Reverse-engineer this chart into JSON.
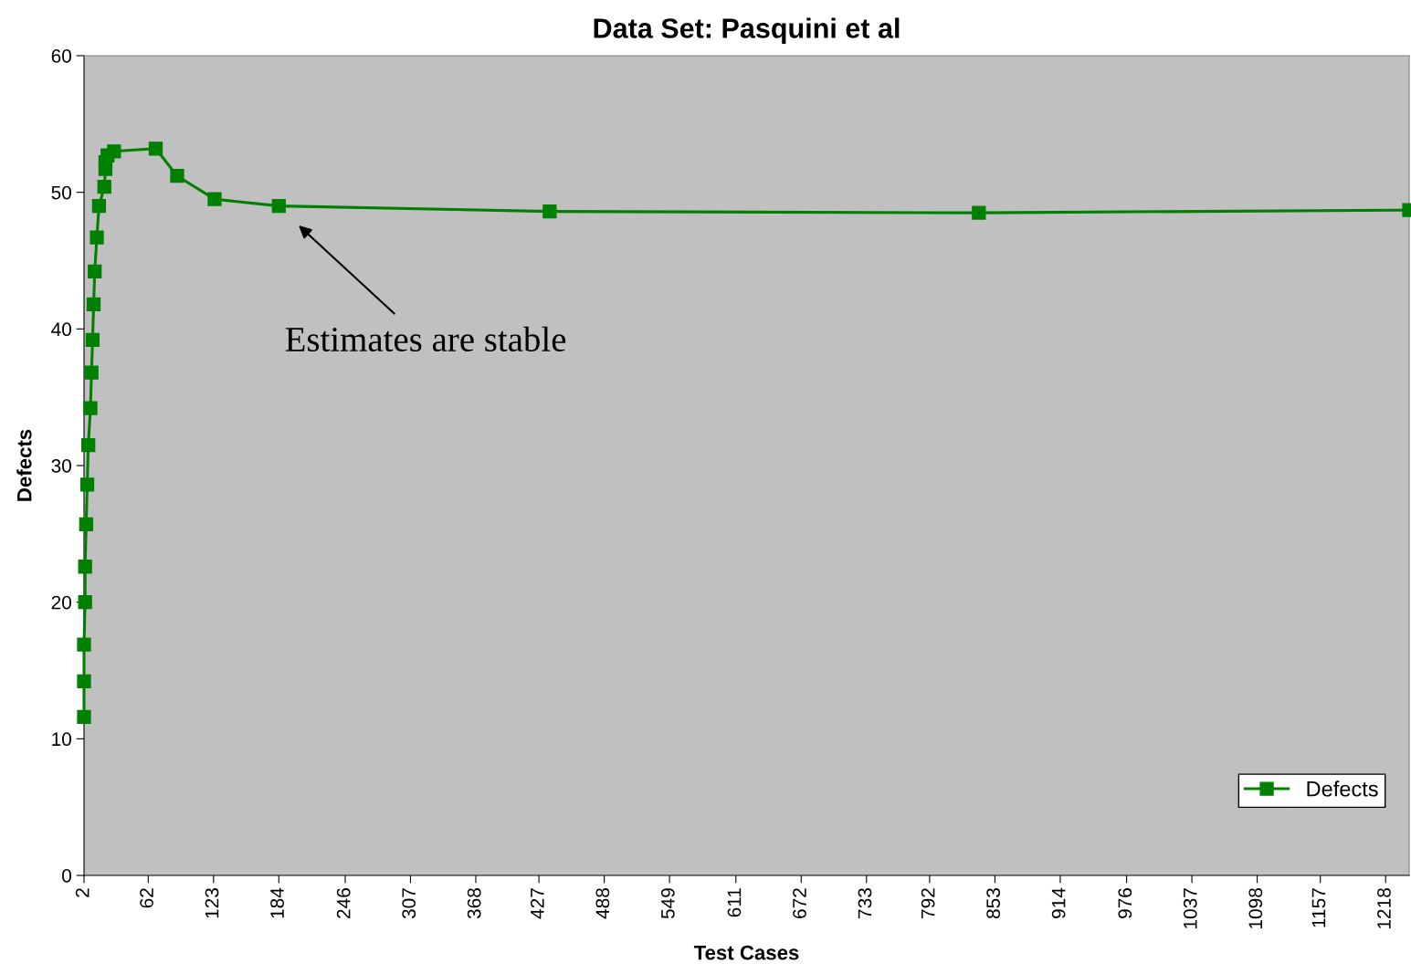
{
  "chart_data": {
    "type": "line",
    "title": "Data Set: Pasquini et al",
    "xlabel": "Test Cases",
    "ylabel": "Defects",
    "x": [
      2,
      2,
      2,
      3,
      3,
      4,
      5,
      6,
      8,
      9,
      10,
      11,
      12,
      14,
      16,
      21,
      22,
      22,
      24,
      30,
      69,
      89,
      124,
      184,
      437,
      838,
      1240
    ],
    "series": [
      {
        "name": "Defects",
        "color": "#008000",
        "values": [
          11.6,
          14.2,
          16.9,
          20.0,
          22.6,
          25.7,
          28.6,
          31.5,
          34.2,
          36.8,
          39.2,
          41.8,
          44.2,
          46.7,
          49.0,
          50.4,
          51.7,
          52.2,
          52.7,
          53.0,
          53.2,
          51.2,
          49.5,
          49.0,
          48.6,
          48.5,
          48.7
        ]
      }
    ],
    "xlim": [
      2,
      1240
    ],
    "xticks": [
      2,
      62,
      123,
      184,
      246,
      307,
      368,
      427,
      488,
      549,
      611,
      672,
      733,
      792,
      853,
      914,
      976,
      1037,
      1098,
      1157,
      1218
    ],
    "ylim": [
      0,
      60
    ],
    "yticks": [
      0,
      10,
      20,
      30,
      40,
      50,
      60
    ],
    "annotations": [
      "Estimates are stable"
    ],
    "marker": "square",
    "line_style": "solid",
    "legend": "bottom right",
    "grid": false
  }
}
